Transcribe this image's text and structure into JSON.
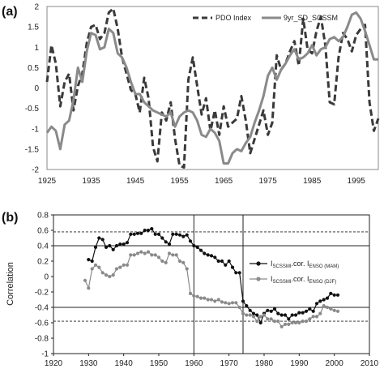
{
  "chart_data": [
    {
      "panel_label": "(a)",
      "type": "line",
      "xlim": [
        1925,
        2000
      ],
      "ylim": [
        -2,
        2
      ],
      "xticks": [
        1925,
        1935,
        1945,
        1955,
        1965,
        1975,
        1985,
        1995
      ],
      "yticks": [
        -2,
        -1.5,
        -1,
        -0.5,
        0,
        0.5,
        1,
        1.5,
        2
      ],
      "ytick_labels": [
        "-2",
        "-1.5",
        "-1",
        "-0.5",
        "0",
        "0.5",
        "1",
        "1.5",
        "2"
      ],
      "grid": false,
      "legend_position": "top-right",
      "series": [
        {
          "name": "PDO Index",
          "style": "dashed",
          "color": "#3a3a3a",
          "x": [
            1925,
            1926,
            1927,
            1928,
            1929,
            1930,
            1931,
            1932,
            1933,
            1934,
            1935,
            1936,
            1937,
            1938,
            1939,
            1940,
            1941,
            1942,
            1943,
            1944,
            1945,
            1946,
            1947,
            1948,
            1949,
            1950,
            1951,
            1952,
            1953,
            1954,
            1955,
            1956,
            1957,
            1958,
            1959,
            1960,
            1961,
            1962,
            1963,
            1964,
            1965,
            1966,
            1967,
            1968,
            1969,
            1970,
            1971,
            1972,
            1973,
            1974,
            1975,
            1976,
            1977,
            1978,
            1979,
            1980,
            1981,
            1982,
            1983,
            1984,
            1985,
            1986,
            1987,
            1988,
            1989,
            1990,
            1991,
            1992,
            1993,
            1994,
            1995,
            1996,
            1997,
            1998,
            1999,
            2000
          ],
          "y": [
            0.15,
            1.05,
            0.6,
            -0.45,
            0.15,
            0.35,
            -0.55,
            0.05,
            0.35,
            1.1,
            1.5,
            1.55,
            1.2,
            1.35,
            1.85,
            1.95,
            1.45,
            0.75,
            0.35,
            -0.05,
            -0.15,
            -0.6,
            0.25,
            -0.25,
            -1.45,
            -1.8,
            -0.6,
            -0.8,
            -0.35,
            -1.25,
            -1.9,
            -1.95,
            0.2,
            0.75,
            0.05,
            -0.65,
            -0.25,
            -1.05,
            -0.55,
            -1.15,
            -0.45,
            -0.95,
            -0.85,
            -0.75,
            -0.2,
            -0.8,
            -1.6,
            -1.25,
            -0.9,
            -0.55,
            -1.15,
            -0.85,
            0.8,
            0.45,
            0.6,
            0.9,
            1.15,
            0.55,
            1.7,
            0.95,
            0.85,
            1.4,
            1.75,
            1.05,
            -0.35,
            -0.4,
            0.75,
            1.35,
            1.2,
            0.9,
            1.3,
            1.45,
            1.55,
            -0.35,
            -1.05,
            -0.75
          ]
        },
        {
          "name": "9yr_SD_SCSSM",
          "style": "solid",
          "color": "#8a8a8a",
          "x": [
            1925,
            1926,
            1927,
            1928,
            1929,
            1930,
            1931,
            1932,
            1933,
            1934,
            1935,
            1936,
            1937,
            1938,
            1939,
            1940,
            1941,
            1942,
            1943,
            1944,
            1945,
            1946,
            1947,
            1948,
            1949,
            1950,
            1951,
            1952,
            1953,
            1954,
            1955,
            1956,
            1957,
            1958,
            1959,
            1960,
            1961,
            1962,
            1963,
            1964,
            1965,
            1966,
            1967,
            1968,
            1969,
            1970,
            1971,
            1972,
            1973,
            1974,
            1975,
            1976,
            1977,
            1978,
            1979,
            1980,
            1981,
            1982,
            1983,
            1984,
            1985,
            1986,
            1987,
            1988,
            1989,
            1990,
            1991,
            1992,
            1993,
            1994,
            1995,
            1996,
            1997,
            1998,
            1999,
            2000
          ],
          "y": [
            -1.1,
            -0.95,
            -1.05,
            -1.5,
            -0.9,
            -0.8,
            -0.3,
            0.5,
            0.15,
            0.9,
            1.35,
            1.3,
            0.95,
            1.0,
            1.45,
            1.35,
            0.85,
            0.75,
            0.5,
            0.15,
            -0.15,
            -0.15,
            -0.35,
            -0.45,
            -0.55,
            -0.6,
            -0.65,
            -0.7,
            -0.6,
            -0.95,
            -0.7,
            -0.6,
            -0.55,
            -0.6,
            -0.8,
            -1.15,
            -1.2,
            -1.0,
            -1.1,
            -1.3,
            -1.85,
            -1.85,
            -1.6,
            -1.5,
            -1.55,
            -1.35,
            -1.2,
            -0.85,
            -0.55,
            -0.2,
            0.3,
            0.5,
            0.2,
            0.45,
            0.6,
            0.8,
            0.95,
            0.7,
            0.75,
            0.85,
            1.05,
            0.8,
            0.95,
            1.0,
            1.2,
            1.25,
            1.15,
            1.25,
            1.5,
            1.8,
            1.85,
            1.7,
            1.4,
            1.05,
            0.7,
            0.7
          ]
        }
      ]
    },
    {
      "panel_label": "(b)",
      "type": "line",
      "ylabel": "Correlation",
      "xlim": [
        1920,
        2010
      ],
      "ylim": [
        -1,
        0.8
      ],
      "xticks": [
        1920,
        1930,
        1940,
        1950,
        1960,
        1970,
        1980,
        1990,
        2000,
        2010
      ],
      "yticks": [
        -1,
        -0.8,
        -0.6,
        -0.4,
        -0.2,
        0,
        0.2,
        0.4,
        0.6,
        0.8
      ],
      "ytick_labels": [
        "-1",
        "-0.8",
        "-0.6",
        "-0.4",
        "-0.2",
        "0",
        "0.2",
        "0.4",
        "0.6",
        "0.8"
      ],
      "hlines_solid": [
        0.4,
        -0.4
      ],
      "hlines_dashed": [
        0.58,
        -0.58
      ],
      "vlines": [
        1960,
        1974
      ],
      "grid": false,
      "legend_position": "right",
      "series": [
        {
          "name_main": "I",
          "name_sub1": "SCSSMI",
          "name_mid": ".cor. I",
          "name_sub2": "ENSO (MAM)",
          "marker": "filled-circle",
          "color": "#111111",
          "x": [
            1930,
            1931,
            1932,
            1933,
            1934,
            1935,
            1936,
            1937,
            1938,
            1939,
            1940,
            1941,
            1942,
            1943,
            1944,
            1945,
            1946,
            1947,
            1948,
            1949,
            1950,
            1951,
            1952,
            1953,
            1954,
            1955,
            1956,
            1957,
            1958,
            1959,
            1960,
            1961,
            1962,
            1963,
            1964,
            1965,
            1966,
            1967,
            1968,
            1969,
            1970,
            1971,
            1972,
            1973,
            1974,
            1975,
            1976,
            1977,
            1978,
            1979,
            1980,
            1981,
            1982,
            1983,
            1984,
            1985,
            1986,
            1987,
            1988,
            1989,
            1990,
            1991,
            1992,
            1993,
            1994,
            1995,
            1996,
            1997,
            1998,
            1999,
            2000,
            2001
          ],
          "y": [
            0.22,
            0.2,
            0.38,
            0.5,
            0.48,
            0.38,
            0.4,
            0.35,
            0.4,
            0.42,
            0.42,
            0.44,
            0.55,
            0.55,
            0.56,
            0.56,
            0.6,
            0.6,
            0.62,
            0.55,
            0.55,
            0.5,
            0.45,
            0.42,
            0.55,
            0.55,
            0.54,
            0.52,
            0.54,
            0.46,
            0.4,
            0.38,
            0.34,
            0.3,
            0.28,
            0.27,
            0.25,
            0.2,
            0.2,
            0.15,
            0.2,
            0.12,
            0.05,
            0.05,
            -0.32,
            -0.38,
            -0.44,
            -0.48,
            -0.5,
            -0.6,
            -0.48,
            -0.44,
            -0.45,
            -0.42,
            -0.48,
            -0.5,
            -0.5,
            -0.55,
            -0.5,
            -0.5,
            -0.47,
            -0.47,
            -0.45,
            -0.42,
            -0.45,
            -0.35,
            -0.32,
            -0.3,
            -0.28,
            -0.22,
            -0.24,
            -0.24
          ]
        },
        {
          "name_main": "I",
          "name_sub1": "SCSSMI",
          "name_mid": ".cor. I",
          "name_sub2": "ENSO (DJF)",
          "marker": "filled-circle",
          "color": "#8a8a8a",
          "x": [
            1929,
            1930,
            1931,
            1932,
            1933,
            1934,
            1935,
            1936,
            1937,
            1938,
            1939,
            1940,
            1941,
            1942,
            1943,
            1944,
            1945,
            1946,
            1947,
            1948,
            1949,
            1950,
            1951,
            1952,
            1953,
            1954,
            1955,
            1956,
            1957,
            1958,
            1959,
            1960,
            1961,
            1962,
            1963,
            1964,
            1965,
            1966,
            1967,
            1968,
            1969,
            1970,
            1971,
            1972,
            1973,
            1974,
            1975,
            1976,
            1977,
            1978,
            1979,
            1980,
            1981,
            1982,
            1983,
            1984,
            1985,
            1986,
            1987,
            1988,
            1989,
            1990,
            1991,
            1992,
            1993,
            1994,
            1995,
            1996,
            1997,
            1998,
            1999,
            2000,
            2001
          ],
          "y": [
            -0.05,
            -0.15,
            0.1,
            0.15,
            0.12,
            0.05,
            0.02,
            0.0,
            0.02,
            0.1,
            0.12,
            0.15,
            0.15,
            0.28,
            0.28,
            0.3,
            0.32,
            0.3,
            0.32,
            0.28,
            0.28,
            0.25,
            0.2,
            0.18,
            0.3,
            0.28,
            0.28,
            0.2,
            0.18,
            0.1,
            -0.22,
            -0.25,
            -0.26,
            -0.28,
            -0.28,
            -0.3,
            -0.3,
            -0.32,
            -0.3,
            -0.33,
            -0.34,
            -0.35,
            -0.34,
            -0.34,
            -0.4,
            -0.48,
            -0.5,
            -0.5,
            -0.52,
            -0.58,
            -0.52,
            -0.5,
            -0.55,
            -0.55,
            -0.58,
            -0.58,
            -0.65,
            -0.62,
            -0.62,
            -0.6,
            -0.6,
            -0.6,
            -0.58,
            -0.58,
            -0.55,
            -0.52,
            -0.52,
            -0.48,
            -0.38,
            -0.4,
            -0.42,
            -0.44,
            -0.45
          ]
        }
      ]
    }
  ]
}
